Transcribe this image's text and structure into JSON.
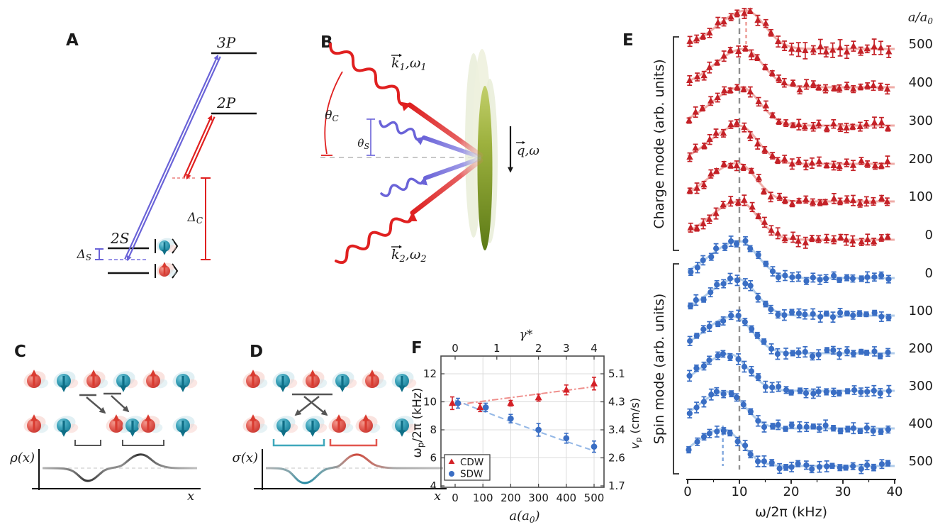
{
  "colors": {
    "charge_red": "#c42127",
    "charge_red_light": "#eda49e",
    "spin_blue": "#3a6ec4",
    "spin_blue_light": "#a9c6e8",
    "laser_red": "#e02020",
    "laser_violet": "#6a63d8",
    "atom_red": "#d94a42",
    "atom_teal": "#1d7f98",
    "cloud_green": "#7e9a2e",
    "reference_gray": "#8f8f8f"
  },
  "panels": {
    "A": {
      "label": "A",
      "levels": [
        "3P",
        "2P",
        "2S"
      ],
      "detuning_spin": {
        "base": "Δ",
        "sub": "S"
      },
      "detuning_charge": {
        "base": "Δ",
        "sub": "C"
      }
    },
    "B": {
      "label": "B",
      "beam1": {
        "base": "k",
        "sub1": "1",
        "mid": ",ω",
        "sub2": "1"
      },
      "beam2": {
        "base": "k",
        "sub1": "2",
        "mid": ",ω",
        "sub2": "2"
      },
      "theta_charge": {
        "base": "θ",
        "sub": "C"
      },
      "theta_spin": {
        "base": "θ",
        "sub": "S"
      },
      "momentum": {
        "base": "q",
        "mid": ",ω"
      }
    },
    "C": {
      "label": "C",
      "ylabel": "ρ(x)",
      "xlabel": "x",
      "top_row": {
        "y": 537,
        "atoms": [
          {
            "x": 48,
            "s": "up"
          },
          {
            "x": 90,
            "s": "down"
          },
          {
            "x": 132,
            "s": "up"
          },
          {
            "x": 174,
            "s": "down"
          },
          {
            "x": 216,
            "s": "up"
          },
          {
            "x": 258,
            "s": "down"
          }
        ]
      },
      "bottom_row": {
        "y": 600,
        "atoms": [
          {
            "x": 48,
            "s": "up"
          },
          {
            "x": 90,
            "s": "down"
          },
          {
            "x": 164,
            "s": "up"
          },
          {
            "x": 187,
            "s": "down"
          },
          {
            "x": 209,
            "s": "up"
          },
          {
            "x": 258,
            "s": "down"
          }
        ]
      }
    },
    "D": {
      "label": "D",
      "ylabel": "σ(x)",
      "xlabel": "x",
      "top_row": {
        "y": 537,
        "atoms": [
          {
            "x": 357,
            "s": "up"
          },
          {
            "x": 399,
            "s": "down"
          },
          {
            "x": 441,
            "s": "up"
          },
          {
            "x": 483,
            "s": "down"
          },
          {
            "x": 525,
            "s": "up"
          },
          {
            "x": 567,
            "s": "down"
          }
        ]
      },
      "bottom_row": {
        "y": 600,
        "atoms": [
          {
            "x": 357,
            "s": "up"
          },
          {
            "x": 400,
            "s": "down"
          },
          {
            "x": 441,
            "s": "down"
          },
          {
            "x": 478,
            "s": "up"
          },
          {
            "x": 516,
            "s": "up"
          },
          {
            "x": 567,
            "s": "down"
          }
        ]
      }
    },
    "E": {
      "label": "E"
    },
    "F": {
      "label": "F"
    }
  },
  "chart_data": [
    {
      "id": "bragg-spectra",
      "type": "line",
      "xlabel": "ω/2π (kHz)",
      "xlim": [
        0,
        40
      ],
      "xticks": [
        0,
        10,
        20,
        30,
        40
      ],
      "minor_xticks": [
        5,
        15,
        25,
        35
      ],
      "column_header": {
        "base": "a/a",
        "sub": "0"
      },
      "dashed_reference_kHz": 10,
      "charge_peak_marker_kHz": 11.3,
      "spin_peak_marker_kHz": 6.8,
      "groups": [
        {
          "name": "Charge mode (arb. units)",
          "marker": "triangle",
          "color": "#c42127",
          "curves": [
            {
              "a_over_a0": "500",
              "peak_kHz": 11.3
            },
            {
              "a_over_a0": "400",
              "peak_kHz": 10.85
            },
            {
              "a_over_a0": "300",
              "peak_kHz": 10.3
            },
            {
              "a_over_a0": "200",
              "peak_kHz": 9.9
            },
            {
              "a_over_a0": "100",
              "peak_kHz": 9.6
            },
            {
              "a_over_a0": "0",
              "peak_kHz": 9.9
            }
          ]
        },
        {
          "name": "Spin mode (arb. units)",
          "marker": "circle",
          "color": "#3a6ec4",
          "curves": [
            {
              "a_over_a0": "0",
              "peak_kHz": 9.9
            },
            {
              "a_over_a0": "100",
              "peak_kHz": 9.6
            },
            {
              "a_over_a0": "200",
              "peak_kHz": 8.8
            },
            {
              "a_over_a0": "300",
              "peak_kHz": 8.0
            },
            {
              "a_over_a0": "400",
              "peak_kHz": 7.4
            },
            {
              "a_over_a0": "500",
              "peak_kHz": 6.8
            }
          ]
        }
      ]
    },
    {
      "id": "peak-frequency-vs-interaction",
      "type": "scatter",
      "xlabel": "a (a0)",
      "xlabel_parts": {
        "pre": "a(a",
        "sub": "0",
        "post": ")"
      },
      "ylabel": "ωp/2π (kHz)",
      "ylabel_parts": {
        "base": "ω",
        "sub": "p",
        "rest": "/2π (kHz)"
      },
      "top_axis_label": "γ*",
      "right_axis_label": "vp (cm/s)",
      "right_axis_parts": {
        "base": "v",
        "sub": "p",
        "rest": " (cm/s)"
      },
      "xticks": [
        0,
        100,
        200,
        300,
        400,
        500
      ],
      "yticks": [
        12,
        10,
        8,
        6,
        4
      ],
      "ylim": [
        4,
        12
      ],
      "top_ticks": [
        {
          "label": "0",
          "a": 0
        },
        {
          "label": "1",
          "a": 150
        },
        {
          "label": "2",
          "a": 300
        },
        {
          "label": "3",
          "a": 400
        },
        {
          "label": "4",
          "a": 500
        }
      ],
      "right_ticks": [
        {
          "label": "5.1",
          "at": 12
        },
        {
          "label": "4.3",
          "at": 10
        },
        {
          "label": "3.4",
          "at": 8
        },
        {
          "label": "2.6",
          "at": 6
        },
        {
          "label": "1.7",
          "at": 4
        }
      ],
      "x": [
        0,
        100,
        200,
        300,
        400,
        500
      ],
      "series": [
        {
          "name": "CDW",
          "marker": "triangle",
          "color": "#d42127",
          "values": [
            9.9,
            9.6,
            9.9,
            10.3,
            10.85,
            11.3
          ],
          "errors": [
            0.45,
            0.3,
            0.2,
            0.25,
            0.35,
            0.45
          ],
          "fit": {
            "style": "dashdot",
            "y0": 9.78,
            "y1": 11.08
          }
        },
        {
          "name": "SDW",
          "marker": "circle",
          "color": "#3a6ec4",
          "values": [
            9.9,
            9.6,
            8.8,
            8.0,
            7.4,
            6.8
          ],
          "errors": [
            0.35,
            0.3,
            0.3,
            0.45,
            0.35,
            0.4
          ],
          "fit": {
            "style": "dashed",
            "y0": 10.12,
            "ymid": 8.15,
            "y1": 6.5
          }
        }
      ]
    }
  ]
}
